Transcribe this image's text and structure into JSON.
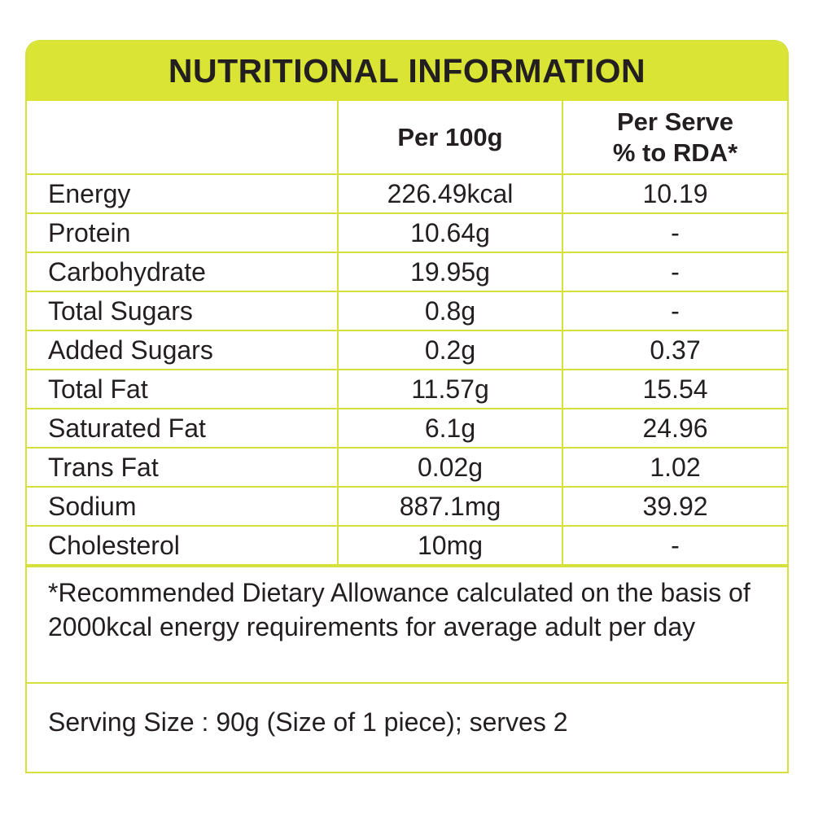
{
  "title": "NUTRITIONAL INFORMATION",
  "columns": {
    "per_100g": "Per 100g",
    "per_serve_line1": "Per Serve",
    "per_serve_line2": "% to RDA*"
  },
  "rows": [
    {
      "nutrient": "Energy",
      "per_100g": "226.49kcal",
      "rda": "10.19"
    },
    {
      "nutrient": "Protein",
      "per_100g": "10.64g",
      "rda": "-"
    },
    {
      "nutrient": "Carbohydrate",
      "per_100g": "19.95g",
      "rda": "-"
    },
    {
      "nutrient": "Total Sugars",
      "per_100g": "0.8g",
      "rda": "-"
    },
    {
      "nutrient": "Added Sugars",
      "per_100g": "0.2g",
      "rda": "0.37"
    },
    {
      "nutrient": "Total Fat",
      "per_100g": "11.57g",
      "rda": "15.54"
    },
    {
      "nutrient": "Saturated Fat",
      "per_100g": "6.1g",
      "rda": "24.96"
    },
    {
      "nutrient": "Trans Fat",
      "per_100g": "0.02g",
      "rda": "1.02"
    },
    {
      "nutrient": "Sodium",
      "per_100g": "887.1mg",
      "rda": "39.92"
    },
    {
      "nutrient": "Cholesterol",
      "per_100g": "10mg",
      "rda": "-"
    }
  ],
  "footnote": "*Recommended Dietary Allowance calculated on the basis of 2000kcal energy requirements for average adult per day",
  "serving_size": "Serving Size : 90g (Size of 1 piece); serves 2",
  "colors": {
    "accent": "#d9e434",
    "border": "#d5e03a",
    "text": "#231f20"
  }
}
